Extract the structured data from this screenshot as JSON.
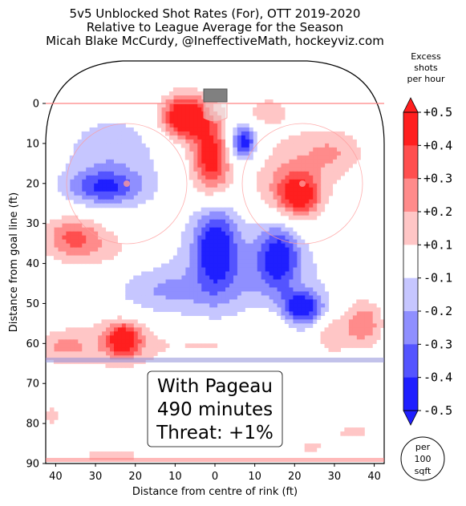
{
  "chart_data": {
    "type": "heatmap",
    "title_lines": [
      "5v5 Unblocked Shot Rates (For), OTT 2019-2020",
      "Relative to League Average for the Season",
      "Micah Blake McCurdy, @IneffectiveMath, hockeyviz.com"
    ],
    "xlabel": "Distance from centre of rink (ft)",
    "ylabel": "Distance from goal line (ft)",
    "xlim": [
      42.5,
      -42.5
    ],
    "ylim": [
      0,
      90
    ],
    "x_ticks": [
      40,
      30,
      20,
      10,
      0,
      10,
      20,
      30,
      40
    ],
    "y_ticks": [
      0,
      10,
      20,
      30,
      40,
      50,
      60,
      70,
      80,
      90
    ],
    "colorbar": {
      "title": [
        "Excess",
        "shots",
        "per hour"
      ],
      "tick_labels": [
        "+0.5",
        "+0.4",
        "+0.3",
        "+0.2",
        "+0.1",
        "-0.1",
        "-0.2",
        "-0.3",
        "-0.4",
        "-0.5"
      ],
      "band_colors": [
        "#ff1f1f",
        "#ff4f4f",
        "#ff8b8b",
        "#ffc6c6",
        "#ffffff",
        "#c6c6ff",
        "#8f8fff",
        "#5454ff",
        "#1f1fff"
      ],
      "unit_label": [
        "per",
        "100",
        "sqft"
      ]
    },
    "annotation": [
      "With Pageau",
      "490 minutes",
      "Threat: +1%"
    ],
    "blobs": [
      {
        "x": 8,
        "y": 3,
        "rx": 5,
        "ry": 5,
        "v": 0.5
      },
      {
        "x": 1,
        "y": 14,
        "rx": 5,
        "ry": 9,
        "v": 0.5
      },
      {
        "x": 4,
        "y": 4,
        "rx": 9,
        "ry": 6,
        "v": 0.2
      },
      {
        "x": -7,
        "y": 10,
        "rx": 3,
        "ry": 4,
        "v": -0.42
      },
      {
        "x": -6,
        "y": 7,
        "rx": 7,
        "ry": 9,
        "v": -0.15
      },
      {
        "x": -21,
        "y": 23,
        "rx": 5,
        "ry": 5,
        "v": 0.42
      },
      {
        "x": -18,
        "y": 20,
        "rx": 11,
        "ry": 12,
        "v": 0.22
      },
      {
        "x": -12,
        "y": 2,
        "rx": 6,
        "ry": 4,
        "v": 0.18
      },
      {
        "x": -30,
        "y": 12,
        "rx": 8,
        "ry": 6,
        "v": 0.17
      },
      {
        "x": 28,
        "y": 21,
        "rx": 9,
        "ry": 4,
        "v": -0.32
      },
      {
        "x": 26,
        "y": 14,
        "rx": 13,
        "ry": 12,
        "v": -0.18
      },
      {
        "x": 36,
        "y": 33,
        "rx": 7,
        "ry": 5,
        "v": 0.25
      },
      {
        "x": 30,
        "y": 36,
        "rx": 12,
        "ry": 6,
        "v": 0.15
      },
      {
        "x": 0,
        "y": 36,
        "rx": 5,
        "ry": 10,
        "v": -0.42
      },
      {
        "x": -16,
        "y": 38,
        "rx": 5,
        "ry": 8,
        "v": -0.38
      },
      {
        "x": -22,
        "y": 51,
        "rx": 5,
        "ry": 4,
        "v": -0.45
      },
      {
        "x": -8,
        "y": 42,
        "rx": 20,
        "ry": 16,
        "v": -0.2
      },
      {
        "x": 14,
        "y": 47,
        "rx": 12,
        "ry": 6,
        "v": -0.16
      },
      {
        "x": 23,
        "y": 59,
        "rx": 4,
        "ry": 4,
        "v": 0.45
      },
      {
        "x": 25,
        "y": 60,
        "rx": 14,
        "ry": 7,
        "v": 0.17
      },
      {
        "x": -37,
        "y": 55,
        "rx": 5,
        "ry": 6,
        "v": 0.3
      },
      {
        "x": -12,
        "y": 55,
        "rx": 6,
        "ry": 5,
        "v": 0.14
      },
      {
        "x": 39,
        "y": 61,
        "rx": 7,
        "ry": 4,
        "v": 0.16
      },
      {
        "x": 0,
        "y": 60,
        "rx": 12,
        "ry": 5,
        "v": 0.14
      },
      {
        "x": -29,
        "y": 58,
        "rx": 4,
        "ry": 5,
        "v": 0.19
      },
      {
        "x": 26,
        "y": 88,
        "rx": 13,
        "ry": 3,
        "v": 0.12
      },
      {
        "x": -35,
        "y": 82,
        "rx": 7,
        "ry": 3,
        "v": 0.12
      },
      {
        "x": 41,
        "y": 78,
        "rx": 3,
        "ry": 5,
        "v": 0.12
      },
      {
        "x": -24,
        "y": 86,
        "rx": 6,
        "ry": 3,
        "v": 0.11
      }
    ]
  },
  "colors": {
    "positive": "#ff1f1f",
    "negative": "#1f1fff",
    "rink_line": "#ff8080",
    "blue_line": "#8f8fd8"
  }
}
